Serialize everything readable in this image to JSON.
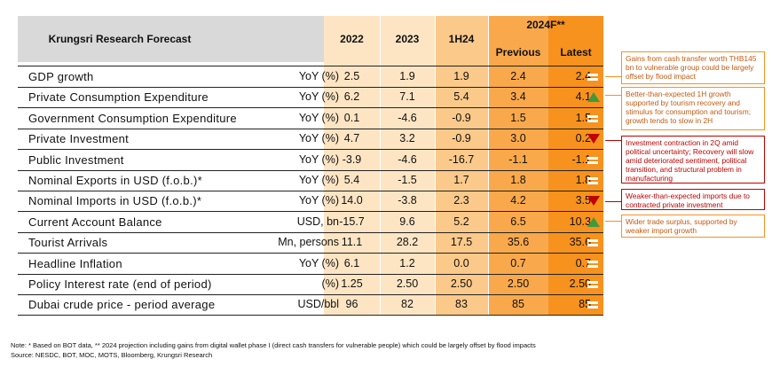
{
  "header": {
    "title": "Krungsri Research Forecast",
    "col_2022": "2022",
    "col_2023": "2023",
    "col_1h24": "1H24",
    "col_2024f": "2024F**",
    "col_previous": "Previous",
    "col_latest": "Latest"
  },
  "rows": [
    {
      "label": "GDP growth",
      "unit": "YoY (%)",
      "v2022": "2.5",
      "v2023": "1.9",
      "v1h24": "1.9",
      "prev": "2.4",
      "latest": "2.4",
      "indicator": "equal"
    },
    {
      "label": "Private Consumption Expenditure",
      "unit": "YoY (%)",
      "v2022": "6.2",
      "v2023": "7.1",
      "v1h24": "5.4",
      "prev": "3.4",
      "latest": "4.1",
      "indicator": "up"
    },
    {
      "label": "Government Consumption Expenditure",
      "unit": "YoY (%)",
      "v2022": "0.1",
      "v2023": "-4.6",
      "v1h24": "-0.9",
      "prev": "1.5",
      "latest": "1.5",
      "indicator": "equal"
    },
    {
      "label": "Private Investment",
      "unit": "YoY (%)",
      "v2022": "4.7",
      "v2023": "3.2",
      "v1h24": "-0.9",
      "prev": "3.0",
      "latest": "0.2",
      "indicator": "down"
    },
    {
      "label": "Public Investment",
      "unit": "YoY (%)",
      "v2022": "-3.9",
      "v2023": "-4.6",
      "v1h24": "-16.7",
      "prev": "-1.1",
      "latest": "-1.1",
      "indicator": "equal"
    },
    {
      "label": "Nominal Exports in USD (f.o.b.)*",
      "unit": "YoY (%)",
      "v2022": "5.4",
      "v2023": "-1.5",
      "v1h24": "1.7",
      "prev": "1.8",
      "latest": "1.8",
      "indicator": "equal"
    },
    {
      "label": "Nominal Imports in USD (f.o.b.)*",
      "unit": "YoY (%)",
      "v2022": "14.0",
      "v2023": "-3.8",
      "v1h24": "2.3",
      "prev": "4.2",
      "latest": "3.5",
      "indicator": "down"
    },
    {
      "label": "Current Account Balance",
      "unit": "USD, bn",
      "v2022": "-15.7",
      "v2023": "9.6",
      "v1h24": "5.2",
      "prev": "6.5",
      "latest": "10.3",
      "indicator": "up"
    },
    {
      "label": "Tourist Arrivals",
      "unit": "Mn, persons",
      "v2022": "11.1",
      "v2023": "28.2",
      "v1h24": "17.5",
      "prev": "35.6",
      "latest": "35.6",
      "indicator": "equal"
    },
    {
      "label": "Headline Inflation",
      "unit": "YoY (%)",
      "v2022": "6.1",
      "v2023": "1.2",
      "v1h24": "0.0",
      "prev": "0.7",
      "latest": "0.7",
      "indicator": "equal"
    },
    {
      "label": "Policy Interest rate (end of period)",
      "unit": "(%)",
      "v2022": "1.25",
      "v2023": "2.50",
      "v1h24": "2.50",
      "prev": "2.50",
      "latest": "2.50",
      "indicator": "equal"
    },
    {
      "label": "Dubai crude price - period average",
      "unit": "USD/bbl",
      "v2022": "96",
      "v2023": "82",
      "v1h24": "83",
      "prev": "85",
      "latest": "85",
      "indicator": "equal"
    }
  ],
  "callouts": [
    {
      "text": "Gains from cash transfer worth THB145 bn to vulnerable group could be largely offset by flood impact",
      "color": "orange"
    },
    {
      "text": "Better-than-expected 1H growth supported by tourism recovery and stimulus for consumption and tourism; growth tends to slow in 2H",
      "color": "orange"
    },
    {
      "text": "Investment contraction in 2Q amid political uncertainty; Recovery will slow amid deteriorated sentiment, political transition, and structural problem in manufacturing",
      "color": "red"
    },
    {
      "text": "Weaker-than-expected imports due to contracted private investment",
      "color": "red"
    },
    {
      "text": "Wider trade surplus, supported by weaker import growth",
      "color": "orange"
    }
  ],
  "colors": {
    "header_grey": "#d9d9d9",
    "col_light": "#fde5c4",
    "col_1h24": "#fbc98a",
    "col_previous": "#f9a94b",
    "col_latest": "#f7921e",
    "up": "#3f9a3c",
    "down": "#c00000"
  },
  "footer": {
    "note": "Note: * Based on BOT data, ** 2024 projection including gains from digital wallet phase I (direct cash transfers for vulnerable people) which could be largely offset by flood impacts",
    "source": "Source: NESDC, BOT, MOC, MOTS, Bloomberg, Krungsri Research"
  }
}
